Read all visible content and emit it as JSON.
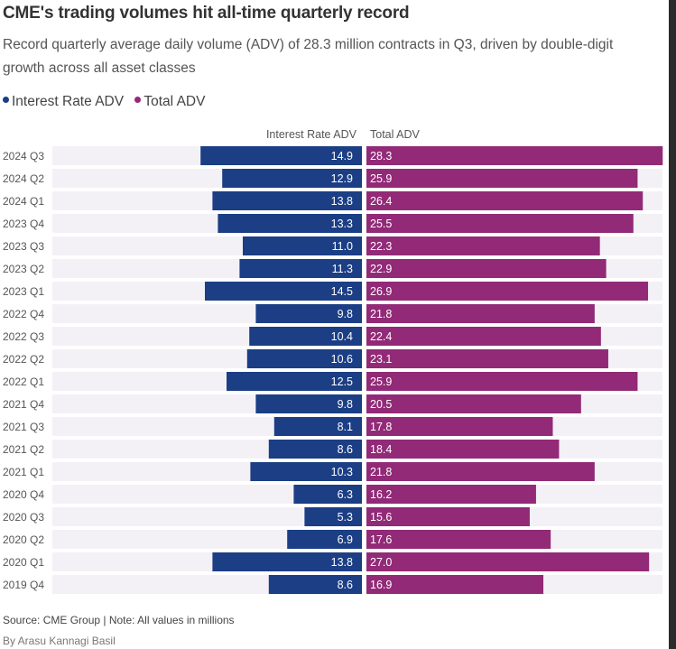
{
  "title": "CME's trading volumes hit all-time quarterly record",
  "subtitle": "Record quarterly average daily volume (ADV) of 28.3 million contracts in Q3, driven by double-digit growth across all asset classes",
  "legend": [
    {
      "label": "Interest Rate ADV",
      "color": "#1b3e85"
    },
    {
      "label": "Total ADV",
      "color": "#922a77"
    }
  ],
  "source": "Source: CME Group | Note: All values in millions",
  "byline": "By Arasu Kannagi Basil",
  "colors": {
    "interest_rate": "#1b3e85",
    "total": "#922a77",
    "track": "#f3f1f6"
  },
  "chart_data": {
    "type": "bar",
    "orientation": "horizontal-diverging",
    "column_headers": [
      "Interest Rate ADV",
      "Total ADV"
    ],
    "categories": [
      "2024 Q3",
      "2024 Q2",
      "2024 Q1",
      "2023 Q4",
      "2023 Q3",
      "2023 Q2",
      "2023 Q1",
      "2022 Q4",
      "2022 Q3",
      "2022 Q2",
      "2022 Q1",
      "2021 Q4",
      "2021 Q3",
      "2021 Q2",
      "2021 Q1",
      "2020 Q4",
      "2020 Q3",
      "2020 Q2",
      "2020 Q1",
      "2019 Q4"
    ],
    "series": [
      {
        "name": "Interest Rate ADV",
        "values": [
          14.9,
          12.9,
          13.8,
          13.3,
          11.0,
          11.3,
          14.5,
          9.8,
          10.4,
          10.6,
          12.5,
          9.8,
          8.1,
          8.6,
          10.3,
          6.3,
          5.3,
          6.9,
          13.8,
          8.6
        ]
      },
      {
        "name": "Total ADV",
        "values": [
          28.3,
          25.9,
          26.4,
          25.5,
          22.3,
          22.9,
          26.9,
          21.8,
          22.4,
          23.1,
          25.9,
          20.5,
          17.8,
          18.4,
          21.8,
          16.2,
          15.6,
          17.6,
          27.0,
          16.9
        ]
      }
    ]
  }
}
